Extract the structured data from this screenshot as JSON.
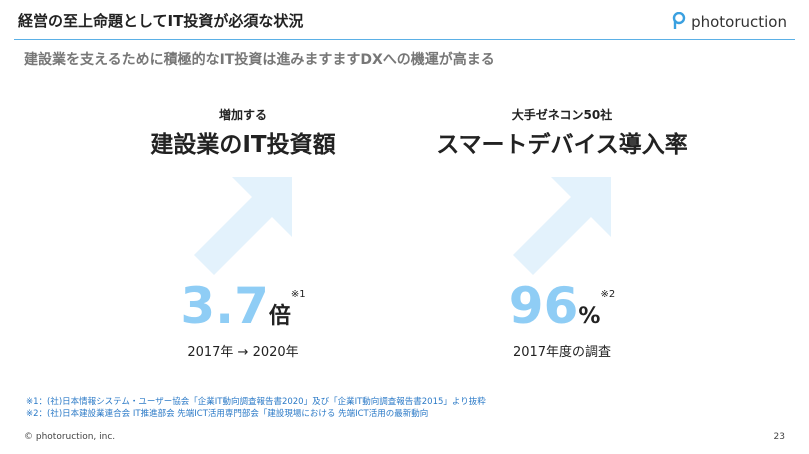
{
  "header": {
    "title": "経営の至上命題としてIT投資が必須な状況",
    "logo": "photoruction"
  },
  "subtitle": "建設業を支えるために積極的なIT投資は進みますますDXへの機運が高まる",
  "panels": [
    {
      "label": "増加する",
      "heading": "建設業のIT投資額",
      "value": 3.7,
      "unit": "倍",
      "note_mark": "※1",
      "caption": "2017年 → 2020年"
    },
    {
      "label": "大手ゼネコン50社",
      "heading": "スマートデバイス導入率",
      "value": 96,
      "unit": "%",
      "note_mark": "※2",
      "caption": "2017年度の調査"
    }
  ],
  "footnotes": [
    "※1：(社)日本情報システム・ユーザー協会「企業IT動向調査報告書2020」及び「企業IT動向調査報告書2015」より抜粋",
    "※2：(社)日本建設業連合会 IT推進部会 先端ICT活用専門部会「建設現場における 先端ICT活用の最新動向"
  ],
  "footer": {
    "copyright": "© photoruction, inc.",
    "page": "23"
  }
}
